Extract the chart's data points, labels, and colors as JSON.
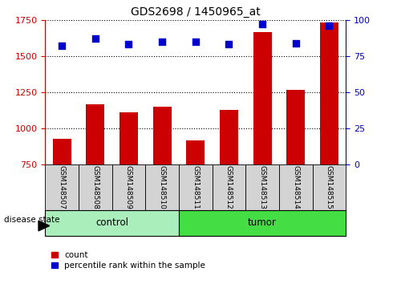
{
  "title": "GDS2698 / 1450965_at",
  "samples": [
    "GSM148507",
    "GSM148508",
    "GSM148509",
    "GSM148510",
    "GSM148511",
    "GSM148512",
    "GSM148513",
    "GSM148514",
    "GSM148515"
  ],
  "counts": [
    930,
    1165,
    1110,
    1150,
    920,
    1130,
    1665,
    1265,
    1730
  ],
  "percentiles": [
    82,
    87,
    83,
    85,
    85,
    83,
    97,
    84,
    96
  ],
  "groups": [
    "control",
    "control",
    "control",
    "control",
    "tumor",
    "tumor",
    "tumor",
    "tumor",
    "tumor"
  ],
  "ylim_left": [
    750,
    1750
  ],
  "ylim_right": [
    0,
    100
  ],
  "yticks_left": [
    750,
    1000,
    1250,
    1500,
    1750
  ],
  "yticks_right": [
    0,
    25,
    50,
    75,
    100
  ],
  "bar_color": "#cc0000",
  "dot_color": "#0000cc",
  "control_color": "#aaeebb",
  "tumor_color": "#44dd44",
  "bg_color": "#d3d3d3",
  "legend_count_label": "count",
  "legend_pct_label": "percentile rank within the sample",
  "disease_state_label": "disease state",
  "control_label": "control",
  "tumor_label": "tumor",
  "grid_color": "black",
  "grid_linestyle": "dotted",
  "n_control": 4,
  "n_tumor": 5
}
